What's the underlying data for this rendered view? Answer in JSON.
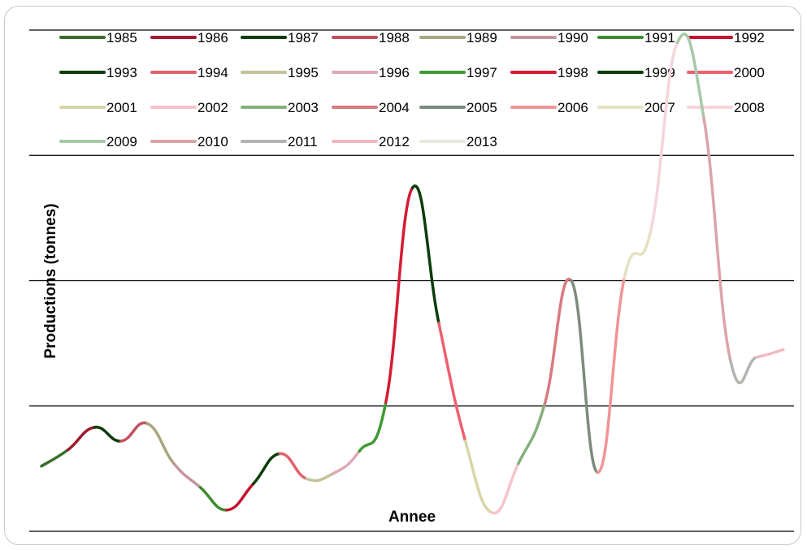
{
  "chart_data": {
    "type": "line",
    "title": "",
    "xlabel": "Annee",
    "ylabel": "Productions (tonnes)",
    "ylim": [
      0,
      4
    ],
    "grid": true,
    "legend_position": "top",
    "x": [
      1985,
      1986,
      1987,
      1988,
      1989,
      1990,
      1991,
      1992,
      1993,
      1994,
      1995,
      1996,
      1997,
      1998,
      1999,
      2000,
      2001,
      2002,
      2003,
      2004,
      2005,
      2006,
      2007,
      2008,
      2009,
      2010,
      2011,
      2012,
      2013
    ],
    "values": [
      0.52,
      0.65,
      0.83,
      0.72,
      0.86,
      0.54,
      0.35,
      0.17,
      0.38,
      0.62,
      0.42,
      0.46,
      0.64,
      1.03,
      2.74,
      1.66,
      0.72,
      0.15,
      0.54,
      1.02,
      2.0,
      0.47,
      2.02,
      2.4,
      3.9,
      3.3,
      1.37,
      1.39,
      1.45
    ],
    "series": [
      {
        "name": "1985",
        "color": "#3a6e2a"
      },
      {
        "name": "1986",
        "color": "#9e1b32"
      },
      {
        "name": "1987",
        "color": "#0b3d0b"
      },
      {
        "name": "1988",
        "color": "#c2505e"
      },
      {
        "name": "1989",
        "color": "#a8a67e"
      },
      {
        "name": "1990",
        "color": "#c2969e"
      },
      {
        "name": "1991",
        "color": "#3d8b2e"
      },
      {
        "name": "1992",
        "color": "#c41230"
      },
      {
        "name": "1993",
        "color": "#0b3d0b"
      },
      {
        "name": "1994",
        "color": "#e0616c"
      },
      {
        "name": "1995",
        "color": "#c4c29a"
      },
      {
        "name": "1996",
        "color": "#dcaab4"
      },
      {
        "name": "1997",
        "color": "#3f9a35"
      },
      {
        "name": "1998",
        "color": "#d41c34"
      },
      {
        "name": "1999",
        "color": "#0b3d0b"
      },
      {
        "name": "2000",
        "color": "#ee5f70"
      },
      {
        "name": "2001",
        "color": "#d9d5a8"
      },
      {
        "name": "2002",
        "color": "#f6c4ca"
      },
      {
        "name": "2003",
        "color": "#84b07a"
      },
      {
        "name": "2004",
        "color": "#d87a80"
      },
      {
        "name": "2005",
        "color": "#7c8c7c"
      },
      {
        "name": "2006",
        "color": "#f09498"
      },
      {
        "name": "2007",
        "color": "#e4e1c2"
      },
      {
        "name": "2008",
        "color": "#f5d4da"
      },
      {
        "name": "2009",
        "color": "#a8c8a8"
      },
      {
        "name": "2010",
        "color": "#dca4a8"
      },
      {
        "name": "2011",
        "color": "#b4b4b0"
      },
      {
        "name": "2012",
        "color": "#f4b8c0"
      },
      {
        "name": "2013",
        "color": "#e8e8dc"
      }
    ]
  }
}
